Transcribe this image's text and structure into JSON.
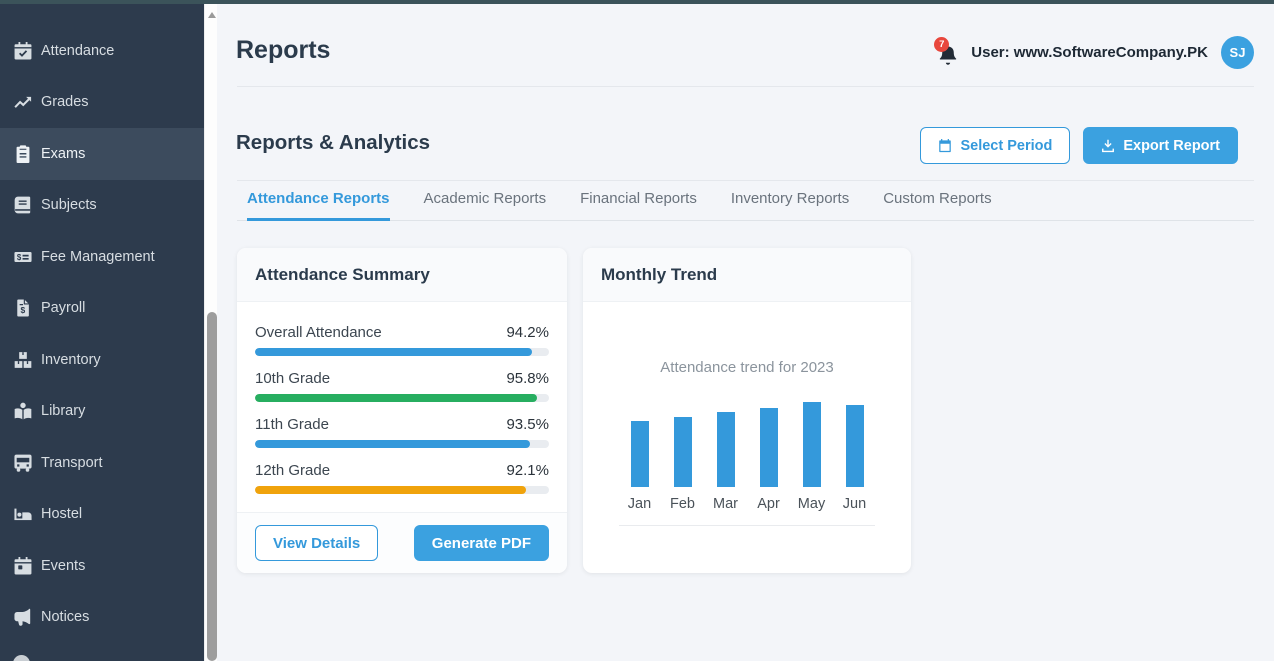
{
  "header": {
    "title": "Reports",
    "notification_icon": "bell-icon",
    "notification_count": "7",
    "user_label": "User: www.SoftwareCompany.PK",
    "avatar_initials": "SJ"
  },
  "sidebar": {
    "items": [
      {
        "label": "Attendance",
        "icon": "calendar-check-icon",
        "active": false
      },
      {
        "label": "Grades",
        "icon": "chart-line-icon",
        "active": false
      },
      {
        "label": "Exams",
        "icon": "clipboard-icon",
        "active": true
      },
      {
        "label": "Subjects",
        "icon": "book-icon",
        "active": false
      },
      {
        "label": "Fee Management",
        "icon": "money-check-icon",
        "active": false
      },
      {
        "label": "Payroll",
        "icon": "invoice-dollar-icon",
        "active": false
      },
      {
        "label": "Inventory",
        "icon": "boxes-icon",
        "active": false
      },
      {
        "label": "Library",
        "icon": "book-reader-icon",
        "active": false
      },
      {
        "label": "Transport",
        "icon": "bus-icon",
        "active": false
      },
      {
        "label": "Hostel",
        "icon": "bed-icon",
        "active": false
      },
      {
        "label": "Events",
        "icon": "calendar-day-icon",
        "active": false
      },
      {
        "label": "Notices",
        "icon": "bullhorn-icon",
        "active": false
      }
    ]
  },
  "toolbar": {
    "heading": "Reports & Analytics",
    "select_period_label": "Select Period",
    "select_period_icon": "calendar-icon",
    "export_report_label": "Export Report",
    "export_report_icon": "download-icon"
  },
  "tabs": [
    {
      "label": "Attendance Reports",
      "active": true
    },
    {
      "label": "Academic Reports",
      "active": false
    },
    {
      "label": "Financial Reports",
      "active": false
    },
    {
      "label": "Inventory Reports",
      "active": false
    },
    {
      "label": "Custom Reports",
      "active": false
    }
  ],
  "attendance_summary": {
    "title": "Attendance Summary",
    "rows": [
      {
        "label": "Overall Attendance",
        "value": "94.2%",
        "percent": 94.2,
        "color": "#3499db"
      },
      {
        "label": "10th Grade",
        "value": "95.8%",
        "percent": 95.8,
        "color": "#27ae60"
      },
      {
        "label": "11th Grade",
        "value": "93.5%",
        "percent": 93.5,
        "color": "#3499db"
      },
      {
        "label": "12th Grade",
        "value": "92.1%",
        "percent": 92.1,
        "color": "#f0a30c"
      }
    ],
    "view_details_label": "View Details",
    "generate_pdf_label": "Generate PDF"
  },
  "monthly_trend": {
    "title": "Monthly Trend",
    "chart_caption": "Attendance trend for 2023"
  },
  "chart_data": {
    "type": "bar",
    "title": "Attendance trend for 2023",
    "categories": [
      "Jan",
      "Feb",
      "Mar",
      "Apr",
      "May",
      "Jun"
    ],
    "values": [
      66,
      70,
      75,
      79,
      85,
      82
    ],
    "value_unit": "relative bar height in px (no y-axis or value labels shown in chart)",
    "bar_color": "#3499db",
    "xlabel": "",
    "ylabel": "",
    "grid": false,
    "legend": false
  },
  "colors": {
    "accent_blue": "#3499db",
    "button_blue": "#3ba1e0",
    "progress_green": "#27ae60",
    "progress_orange": "#f0a30c",
    "badge_red": "#e8473d",
    "sidebar_bg": "#2d3b4d",
    "sidebar_active_bg": "#3c4b5d",
    "main_bg": "#f3f5f9",
    "top_strip": "#3b535a"
  }
}
